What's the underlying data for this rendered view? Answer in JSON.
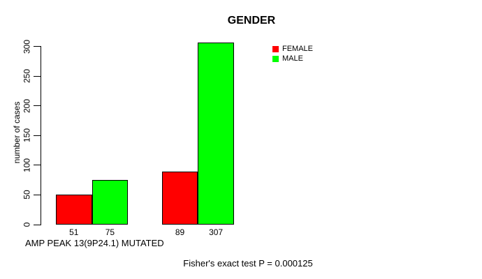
{
  "chart_data": {
    "type": "bar",
    "title": "GENDER",
    "ylabel": "number of cases",
    "xlabel": "AMP PEAK 13(9P24.1) MUTATED",
    "annotation": "Fisher's exact test P = 0.000125",
    "ylim": [
      0,
      300
    ],
    "yticks": [
      0,
      50,
      100,
      150,
      200,
      250,
      300
    ],
    "series": [
      {
        "name": "FEMALE",
        "color": "#ff0000",
        "values": [
          51,
          89
        ]
      },
      {
        "name": "MALE",
        "color": "#00ff00",
        "values": [
          75,
          307
        ]
      }
    ],
    "bar_value_labels": [
      "51",
      "75",
      "89",
      "307"
    ],
    "legend_position": "top-right",
    "grid": false,
    "colors": {
      "background": "#ffffff",
      "text": "#000000",
      "axis": "#000000"
    }
  }
}
